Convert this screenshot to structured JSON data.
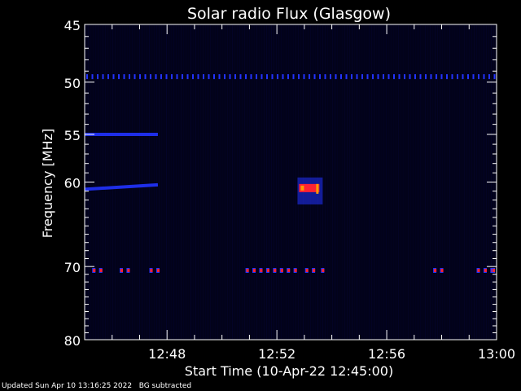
{
  "chart_data": {
    "type": "heatmap",
    "title": "Solar radio Flux (Glasgow)",
    "xlabel": "Start Time (10-Apr-22 12:45:00)",
    "ylabel": "Frequency [MHz]",
    "y_scale": "log",
    "x_start": "12:45",
    "x_end": "13:00",
    "x_ticks": [
      "12:48",
      "12:52",
      "12:56",
      "13:00"
    ],
    "y_ticks": [
      45,
      50,
      55,
      60,
      70,
      80
    ],
    "ylim": [
      45,
      80
    ],
    "y_inverted": true,
    "grid": false,
    "colors": {
      "background": "#000000",
      "axes": "#ffffff",
      "noise": "#0a0a55",
      "weak": "#2233ff",
      "strong": "#ff2233",
      "peak": "#ff9900"
    },
    "features": [
      {
        "name": "persistent interference line",
        "freq_mhz": 49.5,
        "time_start": "12:45",
        "time_end": "13:00",
        "pattern": "dotted",
        "color": "weak"
      },
      {
        "name": "interference band",
        "freq_mhz": 55.0,
        "time_start": "12:45",
        "time_end": "12:47:40",
        "pattern": "solid",
        "color": "weak"
      },
      {
        "name": "interference band",
        "freq_mhz": 60.8,
        "time_start": "12:45",
        "time_end": "12:47:40",
        "pattern": "solid",
        "color": "weak",
        "freq_end_mhz": 60.3
      },
      {
        "name": "burst",
        "freq_mhz_range": [
          59.5,
          62.5
        ],
        "time_start": "12:52:45",
        "time_end": "12:53:40",
        "color": "strong"
      },
      {
        "name": "interference bursts",
        "freq_mhz": 70.5,
        "times": [
          "12:45:20",
          "12:45:35",
          "12:46:20",
          "12:46:35",
          "12:47:25",
          "12:47:40",
          "12:50:55",
          "12:51:10",
          "12:51:25",
          "12:51:40",
          "12:51:55",
          "12:52:10",
          "12:52:25",
          "12:52:40",
          "12:53:05",
          "12:53:20",
          "12:53:40",
          "12:57:45",
          "12:58:00",
          "12:59:20",
          "12:59:35",
          "12:59:50",
          "13:00:00"
        ],
        "color": "strong"
      }
    ]
  },
  "footer": {
    "updated": "Updated Sun Apr 10 13:16:25 2022",
    "bg_note": "BG subtracted"
  }
}
